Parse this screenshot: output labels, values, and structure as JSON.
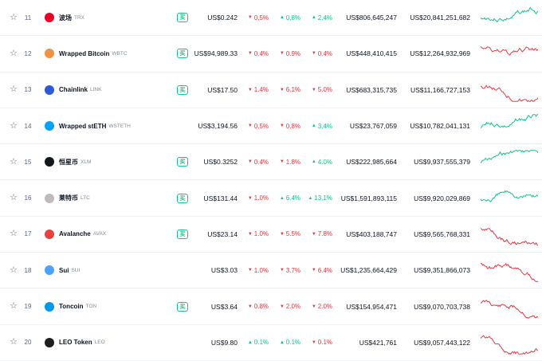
{
  "table": {
    "rows": [
      {
        "rank": "11",
        "name": "波场",
        "symbol": "TRX",
        "logo_color": "#eb0029",
        "logo_icon": "tron-icon",
        "show_buy": true,
        "buy_label": "买",
        "price": "US$0.242",
        "h1": "0.5%",
        "h1_dir": "down",
        "h24": "0.8%",
        "h24_dir": "up",
        "d7": "2.4%",
        "d7_dir": "up",
        "market_cap": "US$806,645,247",
        "volume": "US$20,841,251,682",
        "trend": "up"
      },
      {
        "rank": "12",
        "name": "Wrapped Bitcoin",
        "symbol": "WBTC",
        "logo_color": "#f09242",
        "logo_icon": "wbtc-icon",
        "show_buy": true,
        "buy_label": "买",
        "price": "US$94,989.33",
        "h1": "0.4%",
        "h1_dir": "down",
        "h24": "0.9%",
        "h24_dir": "down",
        "d7": "0.4%",
        "d7_dir": "down",
        "market_cap": "US$448,410,415",
        "volume": "US$12,264,932,969",
        "trend": "down"
      },
      {
        "rank": "13",
        "name": "Chainlink",
        "symbol": "LINK",
        "logo_color": "#2a5ada",
        "logo_icon": "chainlink-icon",
        "show_buy": true,
        "buy_label": "买",
        "price": "US$17.50",
        "h1": "1.4%",
        "h1_dir": "down",
        "h24": "6.1%",
        "h24_dir": "down",
        "d7": "5.0%",
        "d7_dir": "down",
        "market_cap": "US$683,315,735",
        "volume": "US$11,166,727,153",
        "trend": "down"
      },
      {
        "rank": "14",
        "name": "Wrapped stETH",
        "symbol": "WSTETH",
        "logo_color": "#00a3ff",
        "logo_icon": "wsteth-icon",
        "show_buy": false,
        "buy_label": "",
        "price": "US$3,194.56",
        "h1": "0.5%",
        "h1_dir": "down",
        "h24": "0.8%",
        "h24_dir": "down",
        "d7": "3.4%",
        "d7_dir": "up",
        "market_cap": "US$23,767,059",
        "volume": "US$10,782,041,131",
        "trend": "up"
      },
      {
        "rank": "15",
        "name": "恒星币",
        "symbol": "XLM",
        "logo_color": "#14181b",
        "logo_icon": "stellar-icon",
        "show_buy": true,
        "buy_label": "买",
        "price": "US$0.3252",
        "h1": "0.4%",
        "h1_dir": "down",
        "h24": "1.8%",
        "h24_dir": "down",
        "d7": "4.0%",
        "d7_dir": "up",
        "market_cap": "US$222,985,664",
        "volume": "US$9,937,555,379",
        "trend": "up"
      },
      {
        "rank": "16",
        "name": "莱特币",
        "symbol": "LTC",
        "logo_color": "#bfbbbb",
        "logo_icon": "litecoin-icon",
        "show_buy": true,
        "buy_label": "买",
        "price": "US$131.44",
        "h1": "1.0%",
        "h1_dir": "down",
        "h24": "6.4%",
        "h24_dir": "up",
        "d7": "13.1%",
        "d7_dir": "up",
        "market_cap": "US$1,591,893,115",
        "volume": "US$9,920,029,869",
        "trend": "up"
      },
      {
        "rank": "17",
        "name": "Avalanche",
        "symbol": "AVAX",
        "logo_color": "#e84142",
        "logo_icon": "avalanche-icon",
        "show_buy": true,
        "buy_label": "买",
        "price": "US$23.14",
        "h1": "1.0%",
        "h1_dir": "down",
        "h24": "5.5%",
        "h24_dir": "down",
        "d7": "7.8%",
        "d7_dir": "down",
        "market_cap": "US$403,188,747",
        "volume": "US$9,565,768,331",
        "trend": "down"
      },
      {
        "rank": "18",
        "name": "Sui",
        "symbol": "SUI",
        "logo_color": "#4da2ff",
        "logo_icon": "sui-icon",
        "show_buy": false,
        "buy_label": "",
        "price": "US$3.03",
        "h1": "1.0%",
        "h1_dir": "down",
        "h24": "3.7%",
        "h24_dir": "down",
        "d7": "6.4%",
        "d7_dir": "down",
        "market_cap": "US$1,235,664,429",
        "volume": "US$9,351,866,073",
        "trend": "down"
      },
      {
        "rank": "19",
        "name": "Toncoin",
        "symbol": "TON",
        "logo_color": "#0098ea",
        "logo_icon": "toncoin-icon",
        "show_buy": true,
        "buy_label": "买",
        "price": "US$3.64",
        "h1": "0.8%",
        "h1_dir": "down",
        "h24": "2.0%",
        "h24_dir": "down",
        "d7": "2.0%",
        "d7_dir": "down",
        "market_cap": "US$154,954,471",
        "volume": "US$9,070,703,738",
        "trend": "down"
      },
      {
        "rank": "20",
        "name": "LEO Token",
        "symbol": "LEO",
        "logo_color": "#1e1e1e",
        "logo_icon": "leo-icon",
        "show_buy": false,
        "buy_label": "",
        "price": "US$9.80",
        "h1": "0.1%",
        "h1_dir": "up",
        "h24": "0.1%",
        "h24_dir": "up",
        "d7": "0.1%",
        "d7_dir": "down",
        "market_cap": "US$421,761",
        "volume": "US$9,057,443,122",
        "trend": "down"
      }
    ]
  },
  "colors": {
    "up": "#16c784",
    "down": "#ea3943"
  }
}
